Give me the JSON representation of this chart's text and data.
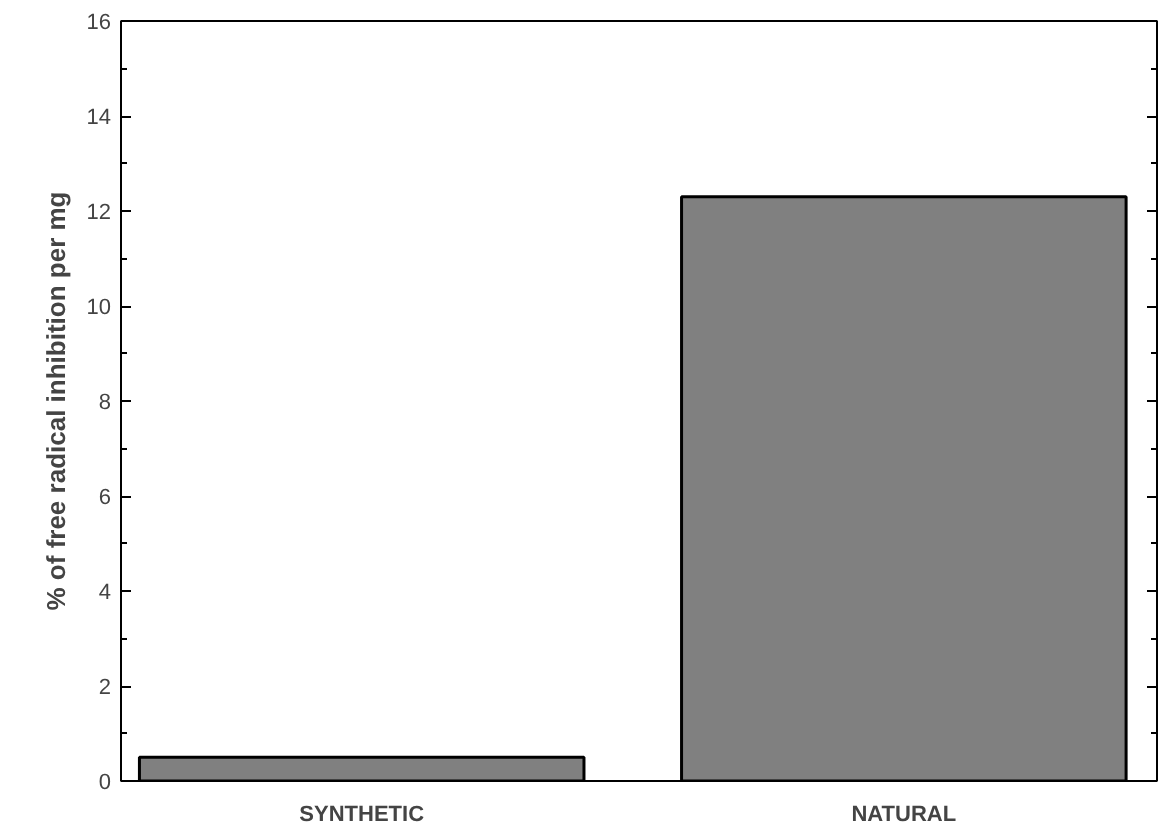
{
  "chart_data": {
    "type": "bar",
    "ylabel": "% of free radical inhibition per mg",
    "categories": [
      "SYNTHETIC",
      "NATURAL"
    ],
    "values": [
      0.5,
      12.3
    ],
    "color": "#808080",
    "ylim": [
      0,
      16
    ],
    "yticks": [
      0,
      2,
      4,
      6,
      8,
      10,
      12,
      14,
      16
    ],
    "grid": false
  }
}
